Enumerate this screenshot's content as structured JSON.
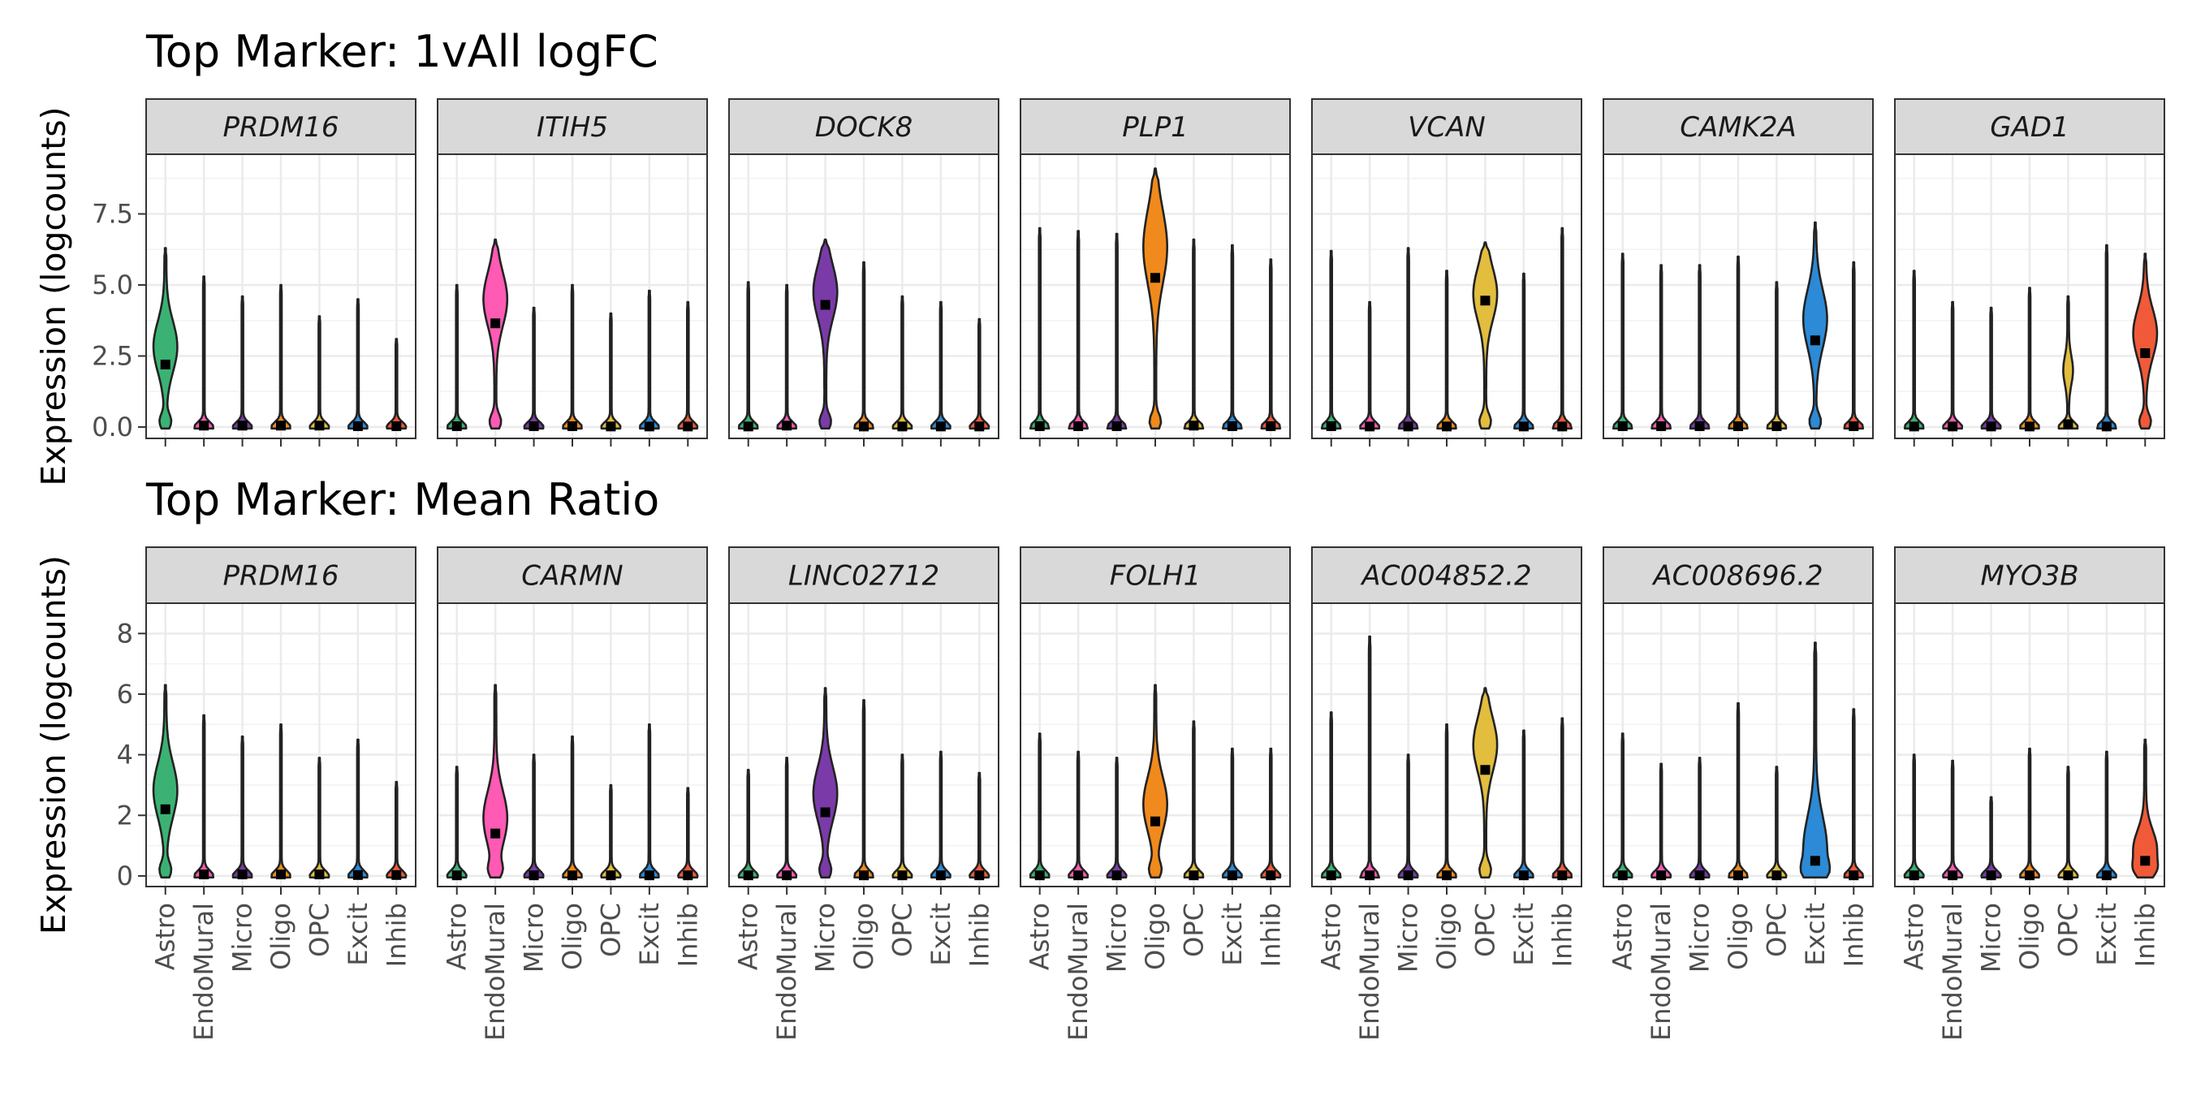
{
  "colors": {
    "Astro": "#3BB273",
    "EndoMural": "#FF5AB4",
    "Micro": "#7A3BA8",
    "Oligo": "#F08A1C",
    "OPC": "#E2BD3E",
    "Excit": "#2C8AD6",
    "Inhib": "#F05A38"
  },
  "chart_data": [
    {
      "type": "violin",
      "title": "Top Marker: 1vAll logFC",
      "ylabel": "Expression (logcounts)",
      "ylim": [
        -0.4,
        9.6
      ],
      "yticks": [
        0,
        2.5,
        5,
        7.5
      ],
      "ytick_labels": [
        "0.0",
        "2.5",
        "5.0",
        "7.5"
      ],
      "categories": [
        "Astro",
        "EndoMural",
        "Micro",
        "Oligo",
        "OPC",
        "Excit",
        "Inhib"
      ],
      "panels": [
        {
          "gene": "PRDM16",
          "target": "Astro",
          "max": [
            6.3,
            5.3,
            4.6,
            5.0,
            3.9,
            4.5,
            3.1
          ],
          "mean": [
            2.2,
            0.05,
            0.05,
            0.05,
            0.05,
            0.03,
            0.03
          ],
          "bulge": [
            0,
            0,
            0,
            0,
            0,
            0,
            0
          ]
        },
        {
          "gene": "ITIH5",
          "target": "EndoMural",
          "max": [
            5.0,
            6.6,
            4.2,
            5.0,
            4.0,
            4.8,
            4.4
          ],
          "mean": [
            0.03,
            3.65,
            0.03,
            0.03,
            0.02,
            0.02,
            0.02
          ],
          "bulge": [
            0,
            0,
            0,
            0,
            0,
            0,
            0
          ]
        },
        {
          "gene": "DOCK8",
          "target": "Micro",
          "max": [
            5.1,
            5.0,
            6.6,
            5.8,
            4.6,
            4.4,
            3.8
          ],
          "mean": [
            0.02,
            0.05,
            4.3,
            0.02,
            0.02,
            0.02,
            0.02
          ],
          "bulge": [
            0,
            0,
            0,
            0,
            0,
            0,
            0
          ]
        },
        {
          "gene": "PLP1",
          "target": "Oligo",
          "max": [
            7.0,
            6.9,
            6.8,
            9.1,
            6.6,
            6.4,
            5.9
          ],
          "mean": [
            0.03,
            0.03,
            0.03,
            5.25,
            0.05,
            0.03,
            0.03
          ],
          "bulge": [
            0,
            0,
            0,
            0,
            0,
            0,
            0
          ]
        },
        {
          "gene": "VCAN",
          "target": "OPC",
          "max": [
            6.2,
            4.4,
            6.3,
            5.5,
            6.5,
            5.4,
            7.0
          ],
          "mean": [
            0.03,
            0.02,
            0.02,
            0.02,
            4.45,
            0.02,
            0.02
          ],
          "bulge": [
            0,
            0,
            0,
            0,
            0,
            0,
            0
          ]
        },
        {
          "gene": "CAMK2A",
          "target": "Excit",
          "max": [
            6.1,
            5.7,
            5.7,
            6.0,
            5.1,
            7.2,
            5.8
          ],
          "mean": [
            0.03,
            0.03,
            0.03,
            0.03,
            0.03,
            3.05,
            0.03
          ],
          "bulge": [
            0,
            0,
            0,
            0,
            0,
            0,
            0
          ]
        },
        {
          "gene": "GAD1",
          "target": "Inhib",
          "max": [
            5.5,
            4.4,
            4.2,
            4.9,
            4.6,
            6.4,
            6.1
          ],
          "mean": [
            0.02,
            0.02,
            0.02,
            0.02,
            0.1,
            0.02,
            2.6
          ],
          "bulge": [
            0,
            0,
            0,
            0,
            2.0,
            0,
            0
          ]
        }
      ]
    },
    {
      "type": "violin",
      "title": "Top Marker: Mean Ratio",
      "ylabel": "Expression (logcounts)",
      "ylim": [
        -0.35,
        9.0
      ],
      "yticks": [
        0,
        2,
        4,
        6,
        8
      ],
      "ytick_labels": [
        "0",
        "2",
        "4",
        "6",
        "8"
      ],
      "categories": [
        "Astro",
        "EndoMural",
        "Micro",
        "Oligo",
        "OPC",
        "Excit",
        "Inhib"
      ],
      "panels": [
        {
          "gene": "PRDM16",
          "target": "Astro",
          "max": [
            6.3,
            5.3,
            4.6,
            5.0,
            3.9,
            4.5,
            3.1
          ],
          "mean": [
            2.2,
            0.05,
            0.05,
            0.05,
            0.05,
            0.03,
            0.03
          ],
          "bulge": [
            0,
            0,
            0,
            0,
            0,
            0,
            0
          ]
        },
        {
          "gene": "CARMN",
          "target": "EndoMural",
          "max": [
            3.6,
            6.3,
            4.0,
            4.6,
            3.0,
            5.0,
            2.9
          ],
          "mean": [
            0.02,
            1.4,
            0.02,
            0.02,
            0.02,
            0.02,
            0.02
          ],
          "bulge": [
            0,
            0,
            0,
            0,
            0,
            0,
            0
          ]
        },
        {
          "gene": "LINC02712",
          "target": "Micro",
          "max": [
            3.5,
            3.9,
            6.2,
            5.8,
            4.0,
            4.1,
            3.4
          ],
          "mean": [
            0.02,
            0.02,
            2.1,
            0.02,
            0.02,
            0.02,
            0.02
          ],
          "bulge": [
            0,
            0,
            0,
            0,
            0,
            0,
            0
          ]
        },
        {
          "gene": "FOLH1",
          "target": "Oligo",
          "max": [
            4.7,
            4.1,
            3.9,
            6.3,
            5.1,
            4.2,
            4.2
          ],
          "mean": [
            0.02,
            0.02,
            0.02,
            1.8,
            0.02,
            0.02,
            0.02
          ],
          "bulge": [
            0,
            0,
            0,
            0,
            0,
            0,
            0
          ]
        },
        {
          "gene": "AC004852.2",
          "target": "OPC",
          "max": [
            5.4,
            7.9,
            4.0,
            5.0,
            6.2,
            4.8,
            5.2
          ],
          "mean": [
            0.02,
            0.02,
            0.02,
            0.02,
            3.5,
            0.02,
            0.02
          ],
          "bulge": [
            0,
            0,
            0,
            0,
            0,
            0,
            0
          ]
        },
        {
          "gene": "AC008696.2",
          "target": "Excit",
          "max": [
            4.7,
            3.7,
            3.9,
            5.7,
            3.6,
            7.7,
            5.5
          ],
          "mean": [
            0.02,
            0.02,
            0.02,
            0.02,
            0.02,
            0.5,
            0.02
          ],
          "bulge": [
            0,
            0,
            0,
            0,
            0,
            0,
            0
          ]
        },
        {
          "gene": "MYO3B",
          "target": "Inhib",
          "max": [
            4.0,
            3.8,
            2.6,
            4.2,
            3.6,
            4.1,
            4.5
          ],
          "mean": [
            0.02,
            0.02,
            0.02,
            0.02,
            0.02,
            0.02,
            0.5
          ],
          "bulge": [
            0,
            0,
            0,
            0,
            0,
            0,
            0
          ]
        }
      ]
    }
  ]
}
